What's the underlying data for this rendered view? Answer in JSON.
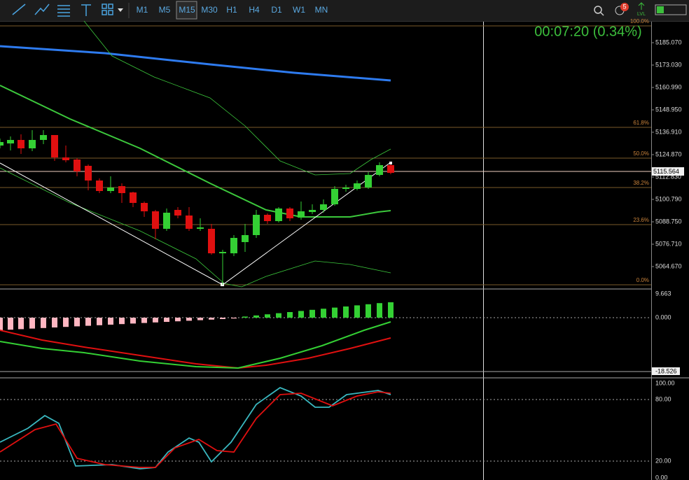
{
  "toolbar": {
    "timeframes": [
      "M1",
      "M5",
      "M15",
      "M30",
      "H1",
      "H4",
      "D1",
      "W1",
      "MN"
    ],
    "active": "M15",
    "notification_count": "5",
    "level_label": "LVL"
  },
  "chart": {
    "timer": "00:07:20 (0.34%)",
    "price_axis": [
      "5185.070",
      "5173.030",
      "5160.990",
      "5148.950",
      "5136.910",
      "5124.870",
      "5112.830",
      "5100.790",
      "5088.750",
      "5076.710",
      "5064.670"
    ],
    "current_price": "5115.564",
    "fib_levels": [
      "100.0%",
      "61.8%",
      "50.0%",
      "38.2%",
      "23.6%",
      "0.0%"
    ]
  },
  "macd": {
    "axis": [
      "9.663",
      "0.000",
      "-18.526"
    ]
  },
  "stochastic": {
    "axis": [
      "100.00",
      "80.00",
      "20.00",
      "0.00"
    ]
  }
}
